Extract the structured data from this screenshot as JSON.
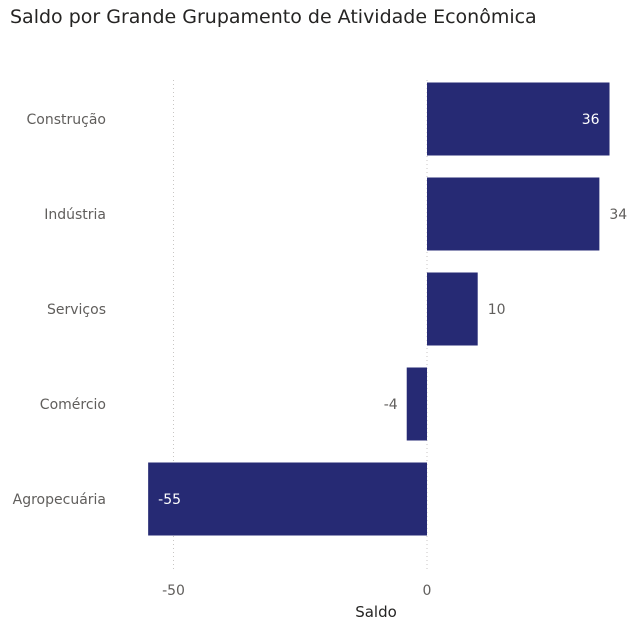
{
  "chart_data": {
    "type": "bar",
    "orientation": "horizontal",
    "title": "Saldo por Grande Grupamento de Atividade Econômica",
    "xlabel": "Saldo",
    "ylabel": "",
    "categories": [
      "Construção",
      "Indústria",
      "Serviços",
      "Comércio",
      "Agropecuária"
    ],
    "values": [
      36,
      34,
      10,
      -4,
      -55
    ],
    "data_labels": [
      "36",
      "34",
      "10",
      "-4",
      "-55"
    ],
    "x_ticks": [
      -50,
      0
    ],
    "x_tick_labels": [
      "-50",
      "0"
    ],
    "xlim": [
      -60,
      40
    ],
    "grid": "vertical dotted",
    "legend": "none",
    "bar_color": "#262a74"
  }
}
